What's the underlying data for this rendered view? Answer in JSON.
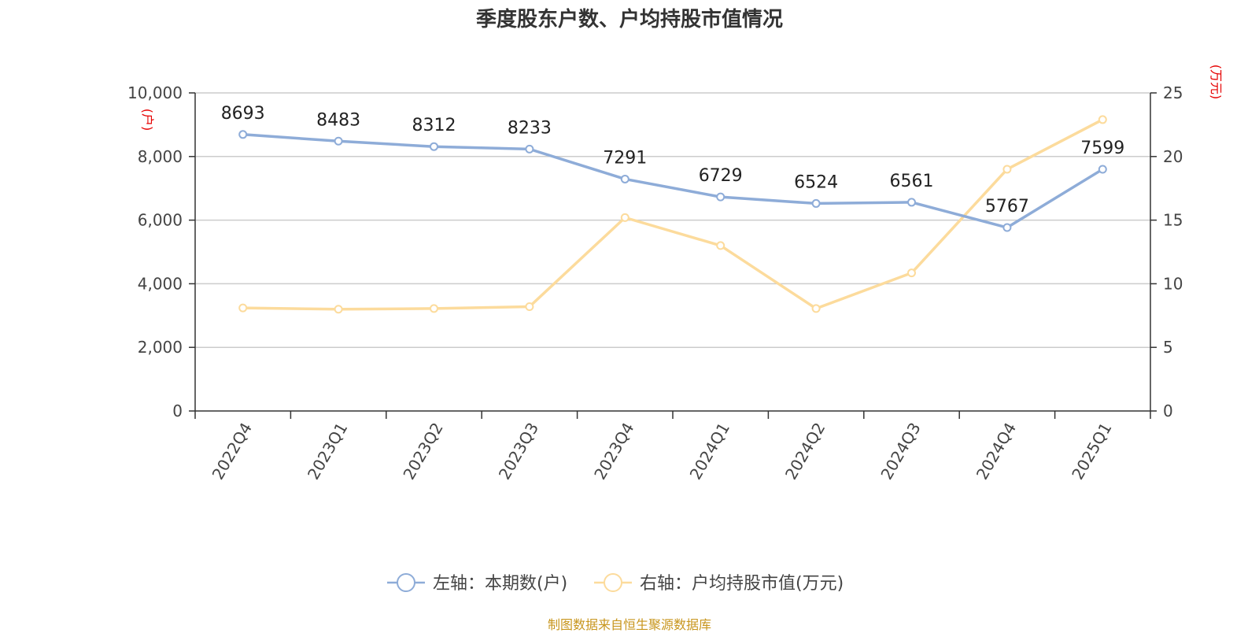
{
  "chart_data": {
    "type": "line",
    "title": "季度股东户数、户均持股市值情况",
    "categories": [
      "2022Q4",
      "2023Q1",
      "2023Q2",
      "2023Q3",
      "2023Q4",
      "2024Q1",
      "2024Q2",
      "2024Q3",
      "2024Q4",
      "2025Q1"
    ],
    "left_axis": {
      "unit": "(户)",
      "range": [
        0,
        10000
      ],
      "ticks": [
        "0",
        "2,000",
        "4,000",
        "6,000",
        "8,000",
        "10,000"
      ]
    },
    "right_axis": {
      "unit": "(万元)",
      "range": [
        0,
        25
      ],
      "ticks": [
        "0",
        "5",
        "10",
        "15",
        "20",
        "25"
      ]
    },
    "grid": true,
    "legend_position": "bottom",
    "series": [
      {
        "name": "左轴：本期数(户)",
        "axis": "left",
        "color": "#8eacd8",
        "values": [
          8693,
          8483,
          8312,
          8233,
          7291,
          6729,
          6524,
          6561,
          5767,
          7599
        ],
        "labels": [
          "8693",
          "8483",
          "8312",
          "8233",
          "7291",
          "6729",
          "6524",
          "6561",
          "5767",
          "7599"
        ]
      },
      {
        "name": "右轴：户均持股市值(万元)",
        "axis": "right",
        "color": "#fcdb9c",
        "values": [
          8.1,
          8.0,
          8.05,
          8.2,
          15.2,
          13.0,
          8.05,
          10.85,
          19.0,
          22.9
        ]
      }
    ],
    "source": "制图数据来自恒生聚源数据库"
  }
}
